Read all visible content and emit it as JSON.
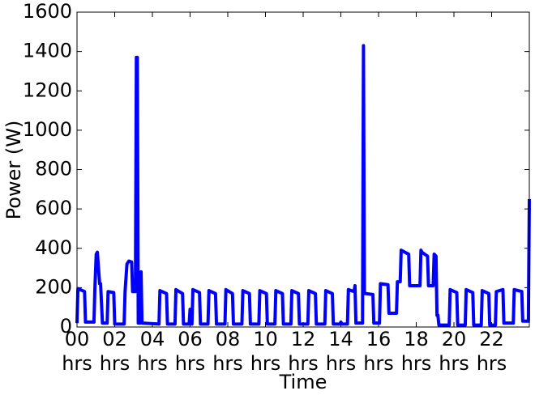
{
  "chart_data": {
    "type": "line",
    "xlabel": "Time",
    "ylabel": "Power (W)",
    "color": "#0000ff",
    "x": [
      0,
      0.05,
      0.4,
      0.45,
      0.9,
      0.95,
      1.02,
      1.08,
      1.2,
      1.25,
      1.35,
      1.4,
      1.6,
      1.65,
      1.95,
      2.0,
      2.5,
      2.55,
      2.65,
      2.75,
      2.9,
      2.95,
      3.1,
      3.15,
      3.2,
      3.25,
      3.35,
      3.4,
      3.45,
      4.35,
      4.4,
      4.75,
      4.8,
      5.2,
      5.25,
      5.6,
      5.65,
      5.95,
      6.0,
      6.05,
      6.1,
      6.15,
      6.5,
      6.55,
      6.95,
      7.0,
      7.35,
      7.4,
      7.85,
      7.9,
      8.25,
      8.3,
      8.75,
      8.8,
      9.15,
      9.2,
      9.65,
      9.7,
      10.05,
      10.1,
      10.5,
      10.55,
      10.9,
      10.95,
      11.35,
      11.4,
      11.75,
      11.8,
      12.25,
      12.3,
      12.65,
      12.7,
      13.15,
      13.2,
      13.55,
      13.6,
      13.95,
      14.0,
      14.05,
      14.35,
      14.4,
      14.7,
      14.75,
      14.8,
      14.85,
      15.15,
      15.2,
      15.25,
      15.3,
      15.7,
      15.75,
      16.05,
      16.1,
      16.5,
      16.55,
      16.95,
      17.0,
      17.15,
      17.2,
      17.6,
      17.65,
      17.75,
      18.2,
      18.25,
      18.3,
      18.6,
      18.65,
      18.9,
      18.95,
      19.05,
      19.1,
      19.15,
      19.2,
      19.25,
      19.3,
      19.75,
      19.8,
      20.15,
      20.2,
      20.6,
      20.65,
      21.0,
      21.05,
      21.45,
      21.5,
      21.85,
      21.9,
      22.2,
      22.25,
      22.6,
      22.65,
      23.15,
      23.2,
      23.6,
      23.65,
      23.95,
      24
    ],
    "values": [
      20,
      195,
      180,
      25,
      25,
      200,
      370,
      380,
      220,
      220,
      20,
      20,
      20,
      180,
      175,
      15,
      15,
      180,
      320,
      335,
      330,
      180,
      180,
      1370,
      1370,
      20,
      20,
      280,
      20,
      15,
      185,
      170,
      15,
      15,
      190,
      170,
      15,
      15,
      90,
      15,
      15,
      190,
      175,
      15,
      15,
      185,
      170,
      15,
      15,
      190,
      170,
      15,
      15,
      185,
      170,
      15,
      15,
      185,
      170,
      15,
      15,
      185,
      170,
      15,
      15,
      185,
      170,
      15,
      15,
      185,
      170,
      15,
      15,
      185,
      170,
      15,
      15,
      25,
      15,
      15,
      190,
      180,
      210,
      20,
      20,
      20,
      1430,
      170,
      170,
      165,
      20,
      20,
      220,
      215,
      70,
      70,
      230,
      230,
      390,
      370,
      210,
      210,
      210,
      390,
      380,
      360,
      210,
      210,
      370,
      360,
      60,
      60,
      10,
      10,
      10,
      10,
      190,
      175,
      10,
      10,
      190,
      175,
      10,
      10,
      185,
      170,
      10,
      10,
      180,
      190,
      20,
      20,
      190,
      180,
      30,
      30,
      650
    ],
    "xlim": [
      0,
      24
    ],
    "xticks": [
      {
        "value": 0,
        "label": "00 hrs"
      },
      {
        "value": 2,
        "label": "02 hrs"
      },
      {
        "value": 4,
        "label": "04 hrs"
      },
      {
        "value": 6,
        "label": "06 hrs"
      },
      {
        "value": 8,
        "label": "08 hrs"
      },
      {
        "value": 10,
        "label": "10 hrs"
      },
      {
        "value": 12,
        "label": "12 hrs"
      },
      {
        "value": 14,
        "label": "14 hrs"
      },
      {
        "value": 16,
        "label": "16 hrs"
      },
      {
        "value": 18,
        "label": "18 hrs"
      },
      {
        "value": 20,
        "label": "20 hrs"
      },
      {
        "value": 22,
        "label": "22 hrs"
      }
    ],
    "ylim": [
      0,
      1600
    ],
    "yticks": [
      0,
      200,
      400,
      600,
      800,
      1000,
      1200,
      1400,
      1600
    ]
  }
}
